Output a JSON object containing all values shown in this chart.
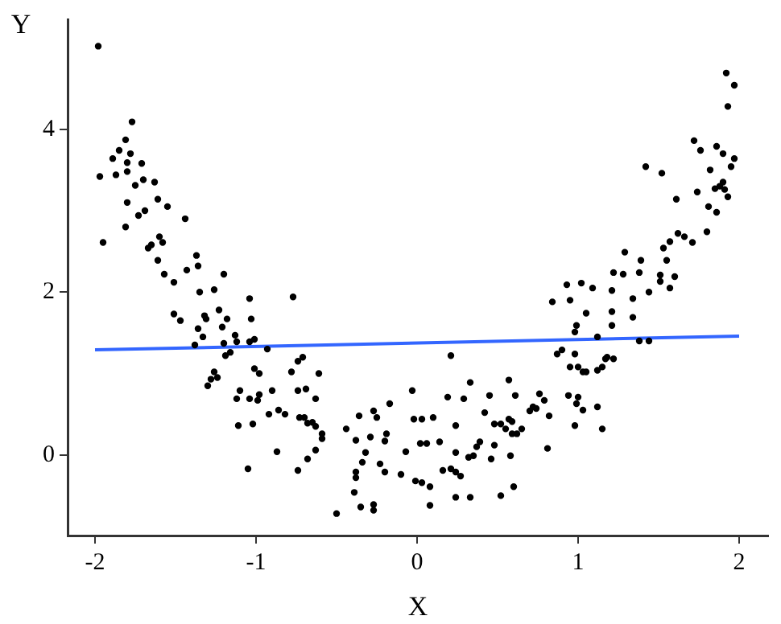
{
  "chart_data": {
    "type": "scatter",
    "xlabel": "X",
    "ylabel": "Y",
    "xlim": [
      -2.17,
      2.18
    ],
    "ylim": [
      -0.99,
      5.35
    ],
    "xticks": [
      -2,
      -1,
      0,
      1,
      2
    ],
    "yticks": [
      0,
      2,
      4
    ],
    "grid": false,
    "legend": false,
    "series": [
      {
        "color": "#000000",
        "marker": "circle",
        "x": [
          -1.98,
          -1.97,
          -1.95,
          -1.77,
          -1.81,
          -1.85,
          -1.89,
          -1.87,
          -1.8,
          -1.78,
          -1.8,
          -1.75,
          -1.71,
          -1.7,
          -1.8,
          -1.73,
          -1.81,
          -1.69,
          -1.63,
          -1.61,
          -1.55,
          -1.67,
          -1.65,
          -1.6,
          -1.58,
          -1.61,
          -1.57,
          -1.51,
          -1.44,
          -1.43,
          -1.37,
          -1.36,
          -1.35,
          -1.51,
          -1.47,
          -1.32,
          -1.31,
          -1.26,
          -1.23,
          -1.2,
          -1.36,
          -1.33,
          -1.38,
          -1.21,
          -1.18,
          -1.13,
          -1.12,
          -1.2,
          -1.19,
          -1.16,
          -1.26,
          -1.28,
          -1.3,
          -1.24,
          -1.04,
          -1.03,
          -1.04,
          -1.01,
          -0.93,
          -0.77,
          -1.01,
          -0.98,
          -1.1,
          -1.12,
          -1.04,
          -0.98,
          -0.99,
          -0.9,
          -1.11,
          -1.02,
          -0.92,
          -0.86,
          -0.82,
          -0.87,
          -1.05,
          -0.78,
          -0.74,
          -0.71,
          -0.74,
          -0.69,
          -0.63,
          -0.61,
          -0.73,
          -0.7,
          -0.68,
          -0.65,
          -0.63,
          -0.59,
          -0.59,
          -0.63,
          -0.68,
          -0.74,
          -0.44,
          -0.36,
          -0.38,
          -0.27,
          -0.25,
          -0.29,
          -0.19,
          -0.2,
          -0.17,
          -0.32,
          -0.34,
          -0.38,
          -0.38,
          -0.23,
          -0.2,
          -0.1,
          -0.07,
          -0.03,
          -0.02,
          -0.01,
          -0.39,
          -0.5,
          -0.35,
          -0.27,
          -0.27,
          0.21,
          0.03,
          0.1,
          0.02,
          0.06,
          0.14,
          0.03,
          0.08,
          0.08,
          0.16,
          0.21,
          0.24,
          0.27,
          0.24,
          0.33,
          0.24,
          0.24,
          0.19,
          0.29,
          0.33,
          0.32,
          0.35,
          0.37,
          0.39,
          0.42,
          0.45,
          0.46,
          0.48,
          0.48,
          0.52,
          0.52,
          0.55,
          0.57,
          0.57,
          0.59,
          0.59,
          0.62,
          0.65,
          0.58,
          0.6,
          0.61,
          0.7,
          0.72,
          0.74,
          0.76,
          0.79,
          0.82,
          0.81,
          0.84,
          0.87,
          0.9,
          0.93,
          0.95,
          0.95,
          0.94,
          0.98,
          0.99,
          0.98,
          1.0,
          1.0,
          0.99,
          0.98,
          1.02,
          1.03,
          1.05,
          1.03,
          1.05,
          1.09,
          1.12,
          1.12,
          1.12,
          1.15,
          1.15,
          1.17,
          1.18,
          1.21,
          1.22,
          1.21,
          1.21,
          1.22,
          1.28,
          1.29,
          1.34,
          1.34,
          1.38,
          1.38,
          1.39,
          1.42,
          1.44,
          1.44,
          1.52,
          1.51,
          1.51,
          1.53,
          1.55,
          1.57,
          1.57,
          1.6,
          1.61,
          1.62,
          1.66,
          1.71,
          1.72,
          1.74,
          1.76,
          1.8,
          1.81,
          1.82,
          1.86,
          1.85,
          1.86,
          1.88,
          1.9,
          1.9,
          1.91,
          1.93,
          1.95,
          1.97,
          1.92,
          1.97,
          1.93
        ],
        "values": [
          5.02,
          3.42,
          2.61,
          4.09,
          3.87,
          3.74,
          3.64,
          3.44,
          3.59,
          3.7,
          3.48,
          3.31,
          3.58,
          3.38,
          3.1,
          2.94,
          2.8,
          3.0,
          3.35,
          3.14,
          3.05,
          2.54,
          2.58,
          2.68,
          2.61,
          2.39,
          2.22,
          2.12,
          2.9,
          2.27,
          2.45,
          2.32,
          2.0,
          1.73,
          1.65,
          1.71,
          1.67,
          2.03,
          1.78,
          2.22,
          1.55,
          1.45,
          1.35,
          1.57,
          1.67,
          1.47,
          1.39,
          1.37,
          1.22,
          1.26,
          1.02,
          0.93,
          0.85,
          0.95,
          1.92,
          1.67,
          1.39,
          1.42,
          1.3,
          1.94,
          1.06,
          1.0,
          0.79,
          0.69,
          0.69,
          0.74,
          0.67,
          0.79,
          0.36,
          0.38,
          0.5,
          0.55,
          0.5,
          0.04,
          -0.17,
          1.02,
          1.15,
          1.2,
          0.79,
          0.81,
          0.69,
          1.0,
          0.46,
          0.46,
          0.39,
          0.4,
          0.35,
          0.26,
          0.2,
          0.06,
          -0.05,
          -0.19,
          0.32,
          0.48,
          0.18,
          0.54,
          0.46,
          0.22,
          0.26,
          0.17,
          0.63,
          0.03,
          -0.09,
          -0.21,
          -0.28,
          -0.11,
          -0.21,
          -0.24,
          0.04,
          0.79,
          0.44,
          -0.32,
          -0.46,
          -0.72,
          -0.64,
          -0.61,
          -0.68,
          1.22,
          0.44,
          0.46,
          0.14,
          0.14,
          0.16,
          -0.34,
          -0.39,
          -0.62,
          -0.19,
          -0.17,
          -0.21,
          -0.26,
          -0.52,
          -0.52,
          0.03,
          0.36,
          0.71,
          0.69,
          0.89,
          -0.03,
          -0.01,
          0.1,
          0.16,
          0.52,
          0.73,
          -0.05,
          0.12,
          0.38,
          0.38,
          -0.5,
          0.32,
          0.92,
          0.44,
          0.41,
          0.26,
          0.26,
          0.32,
          -0.01,
          -0.39,
          0.73,
          0.54,
          0.59,
          0.57,
          0.75,
          0.67,
          0.48,
          0.08,
          1.88,
          1.24,
          1.29,
          2.09,
          1.9,
          1.08,
          0.73,
          1.51,
          1.59,
          1.24,
          1.08,
          0.71,
          0.63,
          0.36,
          2.11,
          1.02,
          1.02,
          0.55,
          1.74,
          2.05,
          1.04,
          1.45,
          0.59,
          1.08,
          0.32,
          1.18,
          1.2,
          2.02,
          2.24,
          1.76,
          1.59,
          1.18,
          2.22,
          2.49,
          1.92,
          1.69,
          1.4,
          2.24,
          2.39,
          3.54,
          2.0,
          1.4,
          3.46,
          2.21,
          2.13,
          2.54,
          2.39,
          2.62,
          2.05,
          2.19,
          3.14,
          2.72,
          2.68,
          2.61,
          3.86,
          3.23,
          3.74,
          2.74,
          3.05,
          3.5,
          2.98,
          3.27,
          3.79,
          3.3,
          3.7,
          3.35,
          3.26,
          3.17,
          3.54,
          3.64,
          4.69,
          4.54,
          4.28
        ]
      },
      {
        "type": "line",
        "marker": "none",
        "color": "#3366ff",
        "x": [
          -2,
          2
        ],
        "values": [
          1.29,
          1.46
        ]
      }
    ]
  }
}
